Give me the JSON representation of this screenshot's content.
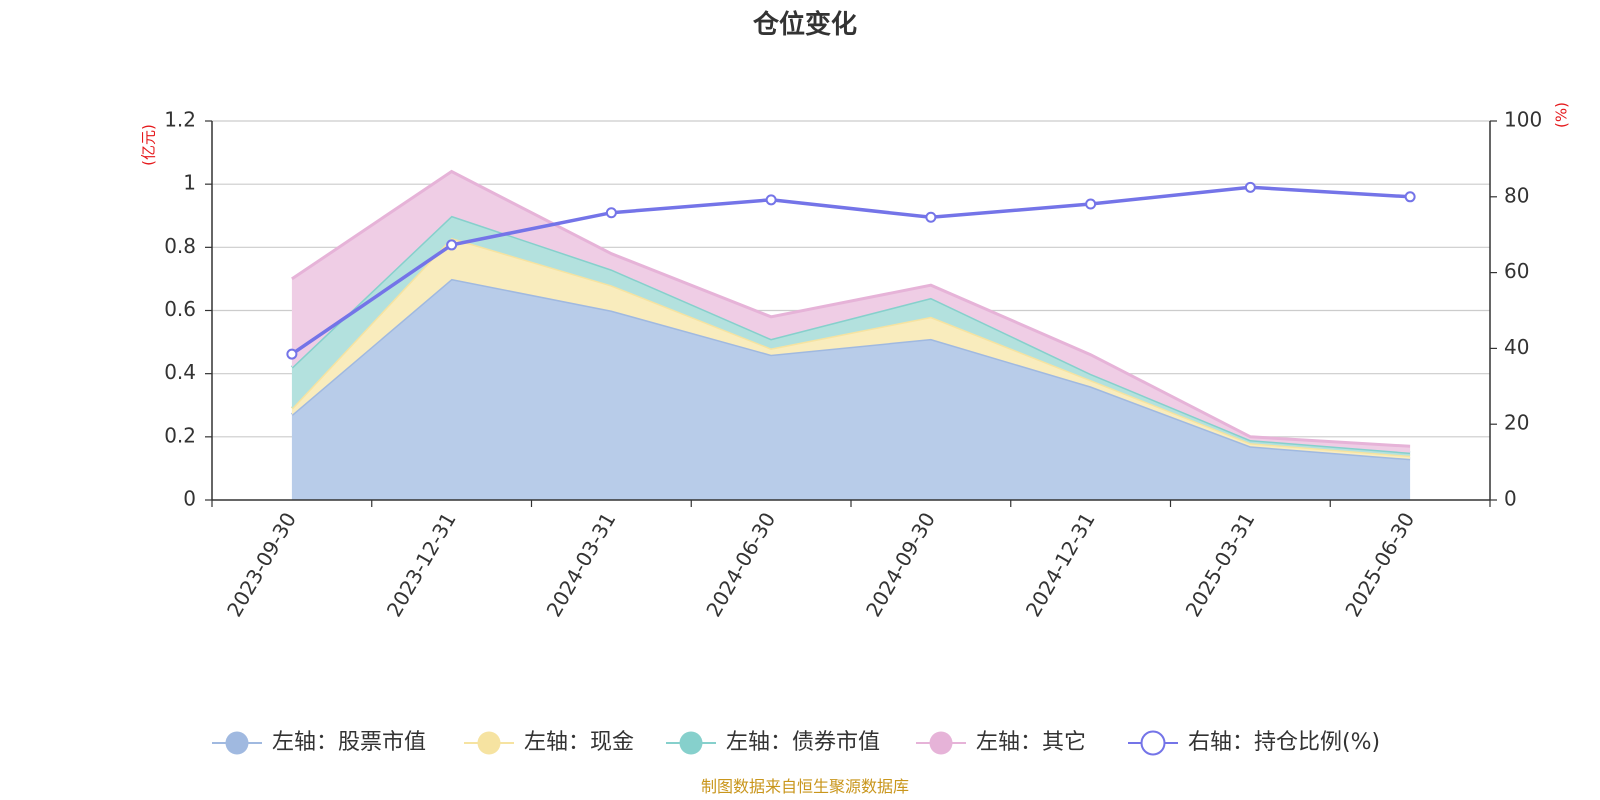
{
  "chart_data": {
    "type": "area",
    "title": "仓位变化",
    "categories": [
      "2023-09-30",
      "2023-12-31",
      "2024-03-31",
      "2024-06-30",
      "2024-09-30",
      "2024-12-31",
      "2025-03-31",
      "2025-06-30"
    ],
    "left_axis": {
      "unit": "(亿元)",
      "ylim": [
        0,
        1.2
      ],
      "ticks": [
        "0",
        "0.2",
        "0.4",
        "0.6",
        "0.8",
        "1",
        "1.2"
      ]
    },
    "right_axis": {
      "unit": "(%)",
      "ylim": [
        0,
        100
      ],
      "ticks": [
        "0",
        "20",
        "40",
        "60",
        "80",
        "100"
      ]
    },
    "stacked_series": [
      {
        "name": "左轴：股票市值",
        "color": "#a0b9e0",
        "fill": "#b8cce9",
        "values": [
          0.27,
          0.7,
          0.6,
          0.46,
          0.51,
          0.36,
          0.17,
          0.13
        ]
      },
      {
        "name": "左轴：现金",
        "color": "#f6e3a1",
        "fill": "#f9ecbd",
        "values": [
          0.02,
          0.13,
          0.08,
          0.02,
          0.07,
          0.02,
          0.01,
          0.01
        ]
      },
      {
        "name": "左轴：债券市值",
        "color": "#86d0cc",
        "fill": "#b3e1de",
        "values": [
          0.13,
          0.07,
          0.05,
          0.03,
          0.06,
          0.02,
          0.01,
          0.01
        ]
      },
      {
        "name": "左轴：其它",
        "color": "#e6b3d8",
        "fill": "#efcde5",
        "values": [
          0.28,
          0.14,
          0.05,
          0.07,
          0.04,
          0.06,
          0.01,
          0.02
        ]
      }
    ],
    "line_series": {
      "name": "右轴：持仓比例(%)",
      "color": "#7474e8",
      "values": [
        38.5,
        67.3,
        75.8,
        79.2,
        74.6,
        78.1,
        82.5,
        80.0
      ]
    },
    "grid": true,
    "legend": "bottom"
  },
  "source": "制图数据来自恒生聚源数据库"
}
